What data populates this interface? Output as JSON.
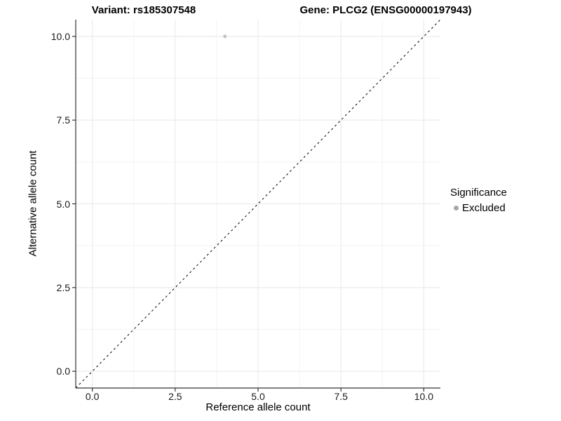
{
  "chart_data": {
    "type": "scatter",
    "titles": {
      "left": "Variant: rs185307548",
      "right": "Gene: PLCG2 (ENSG00000197943)"
    },
    "xlabel": "Reference allele count",
    "ylabel": "Alternative allele count",
    "xlim": [
      -0.5,
      10.5
    ],
    "ylim": [
      -0.5,
      10.5
    ],
    "x_ticks": {
      "values": [
        0,
        2.5,
        5,
        7.5,
        10
      ],
      "labels": [
        "0.0",
        "2.5",
        "5.0",
        "7.5",
        "10.0"
      ]
    },
    "y_ticks": {
      "values": [
        0,
        2.5,
        5,
        7.5,
        10
      ],
      "labels": [
        "0.0",
        "2.5",
        "5.0",
        "7.5",
        "10.0"
      ]
    },
    "minor_breaks": [
      1.25,
      3.75,
      6.25,
      8.75
    ],
    "grid": {
      "show": true,
      "major_color": "#e8e8e8",
      "minor_color": "#f3f3f3"
    },
    "axis_color": "#333333",
    "identity_line": {
      "slope": 1,
      "intercept": 0,
      "style": "dashed",
      "color": "#000000",
      "dash": "3,4"
    },
    "series": [
      {
        "name": "Excluded",
        "points": [
          {
            "x": 4,
            "y": 10
          }
        ]
      }
    ],
    "point_style": {
      "color": "#c1c1c1",
      "radius": 2.5
    },
    "legend": {
      "title": "Significance",
      "position": "right",
      "items": [
        {
          "label": "Excluded",
          "color": "#a6a6a6"
        }
      ]
    }
  }
}
